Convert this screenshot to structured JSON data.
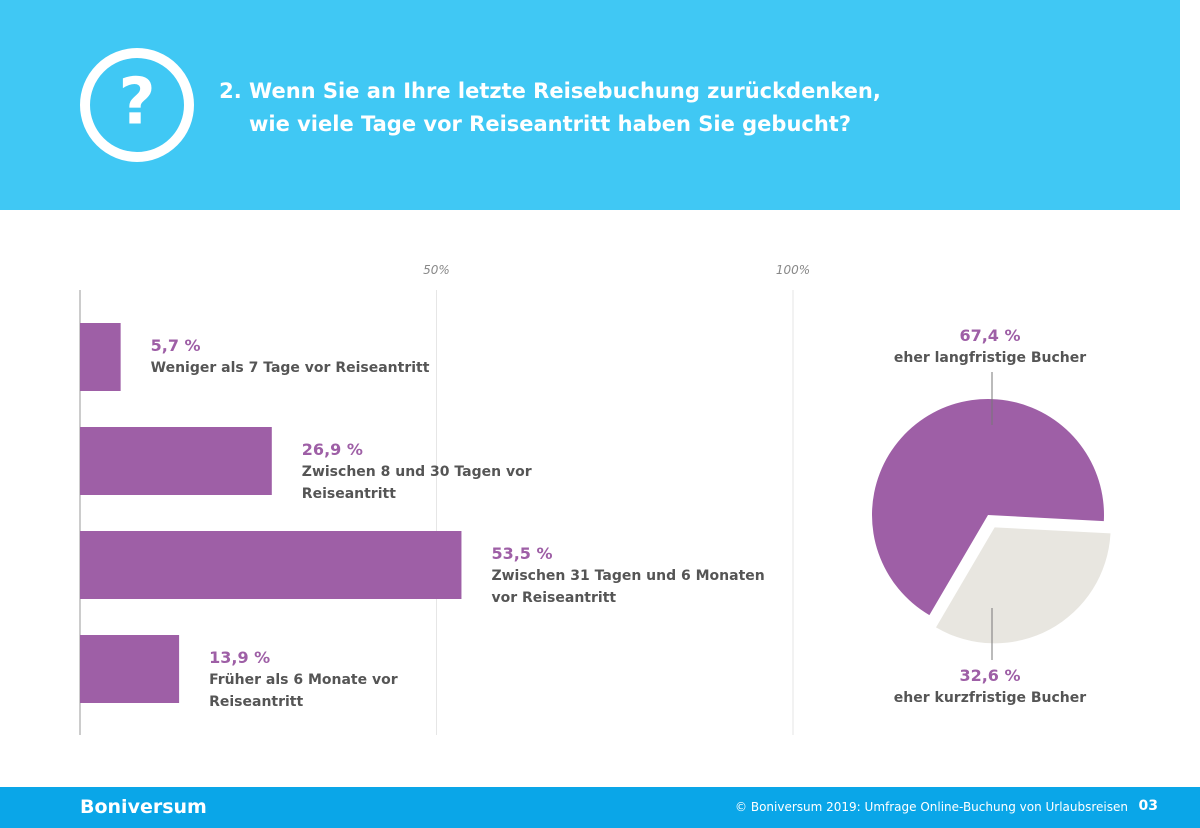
{
  "header": {
    "title_lines": [
      "2. Wenn Sie an Ihre letzte Reisebuchung zurückdenken,",
      "wie viele Tage vor Reiseantritt haben Sie gebucht?"
    ],
    "icon": "?"
  },
  "chart_data": [
    {
      "type": "bar",
      "orientation": "horizontal",
      "color": "#9e5fa6",
      "categories": [
        "Weniger als 7 Tage vor Reiseantritt",
        "Zwischen 8 und 30 Tagen vor Reiseantritt",
        "Zwischen 31 Tagen und 6 Monaten vor Reiseantritt",
        "Früher als 6 Monate vor Reiseantritt"
      ],
      "values": [
        5.7,
        26.9,
        53.5,
        13.9
      ],
      "value_labels": [
        "5,7 %",
        "26,9 %",
        "53,5 %",
        "13,9 %"
      ],
      "xlim": [
        0,
        100
      ],
      "xticks": [
        {
          "value": 50,
          "label": "50%"
        },
        {
          "value": 100,
          "label": "100%"
        }
      ],
      "grid": true
    },
    {
      "type": "pie",
      "categories": [
        "eher langfristige Bucher",
        "eher kurzfristige Bucher"
      ],
      "values": [
        67.4,
        32.6
      ],
      "value_labels": [
        "67,4 %",
        "32,6 %"
      ],
      "colors": [
        "#9e5fa6",
        "#e8e6e0"
      ]
    }
  ],
  "footer": {
    "brand": "Boniversum",
    "copyright": "© Boniversum 2019: Umfrage Online-Buchung von Urlaubsreisen",
    "page": "03"
  }
}
